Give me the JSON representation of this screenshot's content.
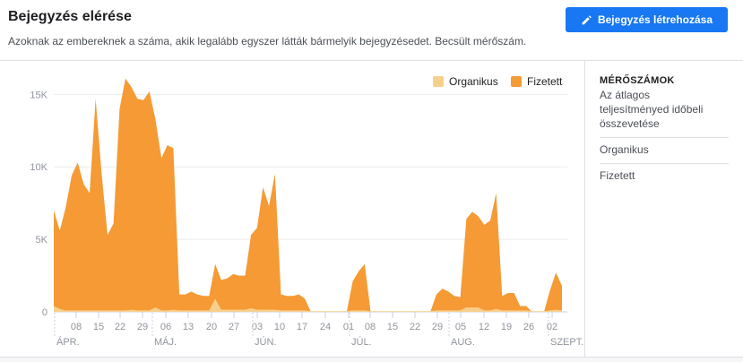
{
  "header": {
    "title": "Bejegyzés elérése",
    "subtitle": "Azoknak az embereknek a száma, akik legalább egyszer látták bármelyik bejegyzésedet. Becsült mérőszám.",
    "create_button_label": "Bejegyzés létrehozása",
    "create_button_icon": "pencil-icon"
  },
  "sidebar": {
    "heading": "MÉRŐSZÁMOK",
    "compare_link": "Az átlagos teljesítményed időbeli összevetése",
    "items": [
      "Organikus",
      "Fizetett"
    ]
  },
  "colors": {
    "organic": "#f7cf8c",
    "paid": "#f59a34",
    "accent": "#1877f2"
  },
  "chart_data": {
    "type": "area",
    "legend": [
      "Organikus",
      "Fizetett"
    ],
    "legend_position": "top-right",
    "y_ticks": [
      "0",
      "5K",
      "10K",
      "15K"
    ],
    "ylim": [
      0,
      17000
    ],
    "grid": true,
    "x_ticks": [
      "08",
      "15",
      "22",
      "29",
      "06",
      "13",
      "20",
      "27",
      "03",
      "10",
      "17",
      "24",
      "01",
      "08",
      "15",
      "22",
      "29",
      "05",
      "12",
      "19",
      "26",
      "02"
    ],
    "month_labels": [
      "ÁPR.",
      "MÁJ.",
      "JÚN.",
      "JÚL.",
      "AUG.",
      "SZEPT."
    ],
    "series": [
      {
        "name": "Fizetett",
        "values": [
          7000,
          5600,
          7200,
          9400,
          10300,
          8800,
          8200,
          14700,
          9500,
          5300,
          6100,
          14000,
          16100,
          15500,
          14700,
          14600,
          15200,
          13300,
          10600,
          11500,
          11300,
          1200,
          1200,
          1400,
          1200,
          1100,
          1100,
          3300,
          2200,
          2300,
          2600,
          2500,
          2500,
          5300,
          5800,
          8600,
          7300,
          9500,
          1200,
          1100,
          1100,
          1200,
          900,
          0,
          0,
          0,
          0,
          0,
          0,
          0,
          2100,
          2800,
          3300,
          0,
          0,
          0,
          0,
          0,
          0,
          0,
          0,
          0,
          0,
          0,
          1200,
          1600,
          1400,
          1100,
          1000,
          6400,
          6900,
          6600,
          6000,
          6300,
          8200,
          1100,
          1300,
          1300,
          400,
          400,
          0,
          0,
          0,
          1500,
          2700,
          1800
        ]
      },
      {
        "name": "Organikus",
        "values": [
          400,
          200,
          100,
          100,
          100,
          100,
          100,
          100,
          100,
          100,
          100,
          100,
          100,
          150,
          100,
          100,
          100,
          300,
          100,
          100,
          150,
          100,
          100,
          100,
          100,
          100,
          100,
          900,
          150,
          150,
          150,
          150,
          150,
          250,
          150,
          150,
          150,
          150,
          100,
          100,
          100,
          100,
          100,
          50,
          50,
          50,
          50,
          50,
          50,
          50,
          100,
          100,
          100,
          50,
          50,
          50,
          50,
          50,
          50,
          50,
          50,
          50,
          50,
          50,
          100,
          100,
          100,
          100,
          100,
          300,
          300,
          300,
          100,
          100,
          200,
          100,
          100,
          100,
          100,
          100,
          50,
          50,
          50,
          100,
          150,
          100
        ]
      }
    ]
  }
}
